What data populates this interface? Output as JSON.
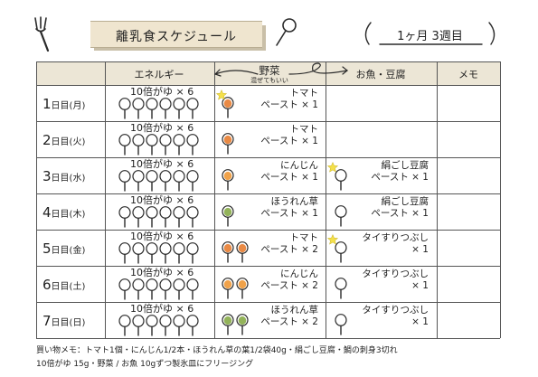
{
  "header": {
    "title": "離乳食スケジュール",
    "week_label": "1ヶ月 3週目"
  },
  "table": {
    "columns": {
      "energy": "エネルギー",
      "vegetable": "野菜",
      "vegetable_note": "混ぜてもいい",
      "fish_tofu": "お魚・豆腐",
      "memo": "メモ"
    },
    "rows": [
      {
        "day": "1",
        "suffix": "日目",
        "weekday": "(月)",
        "energy": "10倍がゆ × 6",
        "veg": "トマト\nペースト × 1",
        "veg_spoons": [
          "#e98a45"
        ],
        "veg_star": true,
        "fish": "",
        "fish_spoon": false,
        "fish_star": false
      },
      {
        "day": "2",
        "suffix": "日目",
        "weekday": "(火)",
        "energy": "10倍がゆ × 6",
        "veg": "トマト\nペースト × 1",
        "veg_spoons": [
          "#e98a45"
        ],
        "veg_star": false,
        "fish": "",
        "fish_spoon": false,
        "fish_star": false
      },
      {
        "day": "3",
        "suffix": "日目",
        "weekday": "(水)",
        "energy": "10倍がゆ × 6",
        "veg": "にんじん\nペースト × 1",
        "veg_spoons": [
          "#f0a24a"
        ],
        "veg_star": false,
        "fish": "絹ごし豆腐\nペースト × 1",
        "fish_spoon": true,
        "fish_star": true
      },
      {
        "day": "4",
        "suffix": "日目",
        "weekday": "(木)",
        "energy": "10倍がゆ × 6",
        "veg": "ほうれん草\nペースト × 1",
        "veg_spoons": [
          "#93b35a"
        ],
        "veg_star": false,
        "fish": "絹ごし豆腐\nペースト × 1",
        "fish_spoon": true,
        "fish_star": false
      },
      {
        "day": "5",
        "suffix": "日目",
        "weekday": "(金)",
        "energy": "10倍がゆ × 6",
        "veg": "トマト\nペースト × 2",
        "veg_spoons": [
          "#e98a45",
          "#e98a45"
        ],
        "veg_star": false,
        "fish": "タイすりつぶし\n× 1",
        "fish_spoon": true,
        "fish_star": true
      },
      {
        "day": "6",
        "suffix": "日目",
        "weekday": "(土)",
        "energy": "10倍がゆ × 6",
        "veg": "にんじん\nペースト × 2",
        "veg_spoons": [
          "#f0a24a",
          "#f0a24a"
        ],
        "veg_star": false,
        "fish": "タイすりつぶし\n× 1",
        "fish_spoon": true,
        "fish_star": false
      },
      {
        "day": "7",
        "suffix": "日目",
        "weekday": "(日)",
        "energy": "10倍がゆ × 6",
        "veg": "ほうれん草\nペースト × 2",
        "veg_spoons": [
          "#93b35a",
          "#93b35a"
        ],
        "veg_star": false,
        "fish": "タイすりつぶし\n× 1",
        "fish_spoon": true,
        "fish_star": false
      }
    ]
  },
  "footer": {
    "shopping_memo": "買い物メモ：トマト1個・にんじん1/2本・ほうれん草の葉1/2袋40g・絹ごし豆腐・鯛の刺身3切れ",
    "freezing_note": "10倍がゆ 15g・野菜 / お魚 10gずつ製氷皿にフリージング"
  },
  "colors": {
    "header_band": "#ece6d6",
    "title_banner": "#efe5cf",
    "star": "#f4e04a"
  },
  "icons": [
    "fork-icon",
    "spoon-icon",
    "star-icon",
    "arrow-icon",
    "loop-arrow-icon"
  ]
}
